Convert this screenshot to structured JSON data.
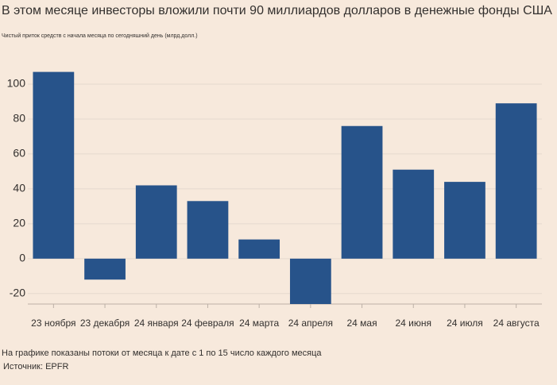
{
  "chart_data": {
    "type": "bar",
    "title": "В этом месяце инвесторы вложили почти 90 миллиардов долларов в денежные фонды США",
    "subtitle": "Чистый приток средств с начала месяца по сегодняшний день (млрд.долл.)",
    "categories": [
      "23 ноября",
      "23 декабря",
      "24 января",
      "24 февраля",
      "24 марта",
      "24 апреля",
      "24 мая",
      "24 июня",
      "24 июля",
      "24 августа"
    ],
    "values": [
      107,
      -12,
      42,
      33,
      11,
      -26,
      76,
      51,
      44,
      89
    ],
    "color": "#27538a",
    "ylim": [
      -26,
      110
    ],
    "yticks": [
      -20,
      0,
      20,
      40,
      60,
      80,
      100
    ],
    "grid": true,
    "note": "На графике показаны потоки от месяца к дате с 1 по 15 число каждого месяца",
    "source": "Источник: EPFR"
  }
}
